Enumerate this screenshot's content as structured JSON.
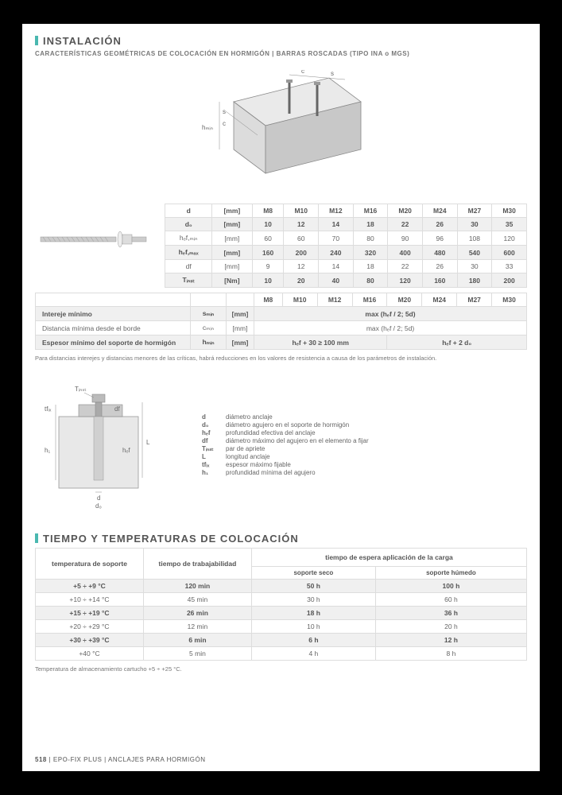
{
  "section1": {
    "title": "INSTALACIÓN",
    "subtitle": "CARACTERÍSTICAS GEOMÉTRICAS DE COLOCACIÓN EN HORMIGÓN | BARRAS ROSCADAS (TIPO INA o MGS)"
  },
  "diagram_labels": {
    "c": "c",
    "s": "s",
    "hmin": "hₘᵢₙ"
  },
  "table1": {
    "header": [
      "d",
      "[mm]",
      "M8",
      "M10",
      "M12",
      "M16",
      "M20",
      "M24",
      "M27",
      "M30"
    ],
    "rows": [
      {
        "sym": "d₀",
        "unit": "[mm]",
        "vals": [
          "10",
          "12",
          "14",
          "18",
          "22",
          "26",
          "30",
          "35"
        ],
        "alt": true
      },
      {
        "sym": "hₑf,ₘᵢₙ",
        "unit": "[mm]",
        "vals": [
          "60",
          "60",
          "70",
          "80",
          "90",
          "96",
          "108",
          "120"
        ],
        "alt": false
      },
      {
        "sym": "hₑf,ₘₐₓ",
        "unit": "[mm]",
        "vals": [
          "160",
          "200",
          "240",
          "320",
          "400",
          "480",
          "540",
          "600"
        ],
        "alt": true
      },
      {
        "sym": "df",
        "unit": "[mm]",
        "vals": [
          "9",
          "12",
          "14",
          "18",
          "22",
          "26",
          "30",
          "33"
        ],
        "alt": false
      },
      {
        "sym": "Tᵢₙₛₜ",
        "unit": "[Nm]",
        "vals": [
          "10",
          "20",
          "40",
          "80",
          "120",
          "160",
          "180",
          "200"
        ],
        "alt": true
      }
    ]
  },
  "table2": {
    "header": [
      "M8",
      "M10",
      "M12",
      "M16",
      "M20",
      "M24",
      "M27",
      "M30"
    ],
    "rows": [
      {
        "label": "Intereje mínimo",
        "sym": "sₘᵢₙ",
        "unit": "[mm]",
        "span": "max (hₑf / 2; 5d)",
        "alt": true
      },
      {
        "label": "Distancia mínima desde el borde",
        "sym": "cₘᵢₙ",
        "unit": "[mm]",
        "span": "max (hₑf / 2; 5d)",
        "alt": false
      },
      {
        "label": "Espesor mínimo del soporte de hormigón",
        "sym": "hₘᵢₙ",
        "unit": "[mm]",
        "cells": [
          "hₑf  + 30 ≥ 100 mm",
          "hₑf  + 2 d₀"
        ],
        "alt": true
      }
    ]
  },
  "note1": "Para distancias interejes y distancias menores de las críticas, habrá reducciones en los valores de resistencia a causa de los parámetros de instalación.",
  "legend": [
    {
      "sym": "d",
      "desc": "diámetro anclaje"
    },
    {
      "sym": "d₀",
      "desc": "diámetro agujero en el soporte de hormigón"
    },
    {
      "sym": "hₑf",
      "desc": "profundidad efectiva del anclaje"
    },
    {
      "sym": "df",
      "desc": "diámetro máximo del agujero en el elemento a fijar"
    },
    {
      "sym": "Tᵢₙₛₜ",
      "desc": "par de apriete"
    },
    {
      "sym": "L",
      "desc": "longitud anclaje"
    },
    {
      "sym": "tfᵢₓ",
      "desc": "espesor máximo fijable"
    },
    {
      "sym": "h₁",
      "desc": "profundidad mínima del agujero"
    }
  ],
  "diagram2_labels": {
    "Tinst": "Tᵢₙₛₜ",
    "tfix": "tfᵢₓ",
    "df": "df",
    "L": "L",
    "hef": "hₑf",
    "h1": "h₁",
    "d": "d",
    "d0": "d₀"
  },
  "section2": {
    "title": "TIEMPO Y TEMPERATURAS DE COLOCACIÓN"
  },
  "table3": {
    "h1": "temperatura de soporte",
    "h2": "tiempo de trabajabilidad",
    "h3": "tiempo de espera aplicación de la carga",
    "h3a": "soporte seco",
    "h3b": "soporte húmedo",
    "rows": [
      {
        "t": "+5 ÷ +9 °C",
        "w": "120 min",
        "d": "50 h",
        "h": "100 h",
        "alt": true
      },
      {
        "t": "+10 ÷ +14 °C",
        "w": "45 min",
        "d": "30 h",
        "h": "60 h",
        "alt": false
      },
      {
        "t": "+15 ÷ +19 °C",
        "w": "26 min",
        "d": "18 h",
        "h": "36 h",
        "alt": true
      },
      {
        "t": "+20 ÷ +29 °C",
        "w": "12 min",
        "d": "10 h",
        "h": "20 h",
        "alt": false
      },
      {
        "t": "+30 ÷ +39 °C",
        "w": "6 min",
        "d": "6 h",
        "h": "12 h",
        "alt": true
      },
      {
        "t": "+40 °C",
        "w": "5 min",
        "d": "4 h",
        "h": "8 h",
        "alt": false
      }
    ]
  },
  "note2": "Temperatura de almacenamiento cartucho +5 ÷ +25 °C.",
  "footer": {
    "page": "518",
    "sep": " | ",
    "product": "EPO-FIX PLUS",
    "sep2": " | ",
    "cat": "ANCLAJES PARA HORMIGÓN"
  }
}
